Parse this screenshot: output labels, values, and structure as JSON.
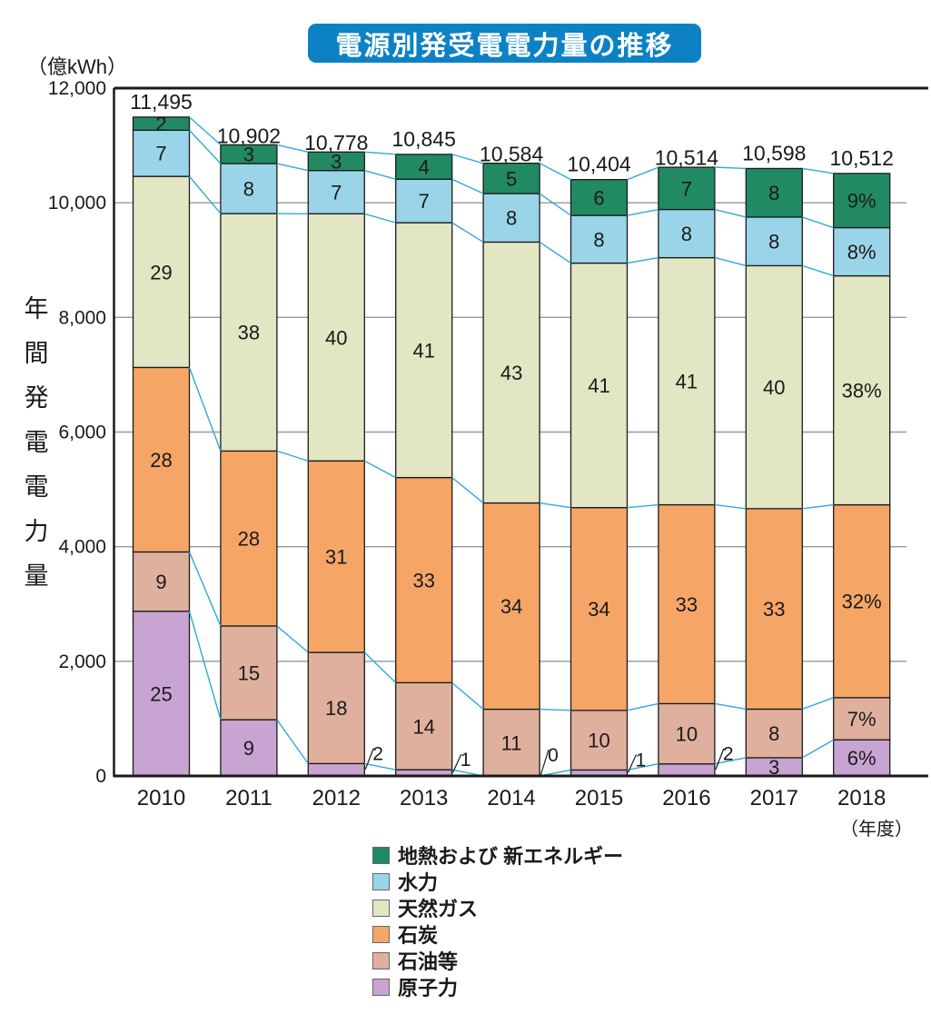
{
  "title": "電源別発受電電力量の推移",
  "unit_label": "（億kWh）",
  "y_axis_label": "年間発電電力量",
  "x_axis_unit": "（年度）",
  "colors": {
    "title_bg": "#0c82c5",
    "axis": "#1a1a1a",
    "grid": "#9a9a9a",
    "connector": "#2fa9dd",
    "text": "#1a1a1a"
  },
  "chart_data": {
    "type": "bar",
    "stacked": true,
    "title": "電源別発受電電力量の推移",
    "ylabel": "年間発電電力量",
    "y_unit": "（億kWh）",
    "x_unit": "（年度）",
    "ylim": [
      0,
      12000
    ],
    "grid": true,
    "legend_position": "bottom",
    "categories": [
      "2010",
      "2011",
      "2012",
      "2013",
      "2014",
      "2015",
      "2016",
      "2017",
      "2018"
    ],
    "totals": [
      11495,
      10902,
      10778,
      10845,
      10584,
      10404,
      10514,
      10598,
      10512
    ],
    "total_labels": [
      "11,495",
      "10,902",
      "10,778",
      "10,845",
      "10,584",
      "10,404",
      "10,514",
      "10,598",
      "10,512"
    ],
    "percent_suffix_category": "2018",
    "yticks": [
      {
        "value": 12000,
        "label": "12,000"
      },
      {
        "value": 10000,
        "label": "10,000"
      },
      {
        "value": 8000,
        "label": "8,000"
      },
      {
        "value": 6000,
        "label": "6,000"
      },
      {
        "value": 4000,
        "label": "4,000"
      },
      {
        "value": 2000,
        "label": "2,000"
      },
      {
        "value": 0,
        "label": "0"
      }
    ],
    "series": [
      {
        "name": "原子力",
        "color": "#c7a4d1",
        "values_pct": [
          25,
          9,
          2,
          1,
          0,
          1,
          2,
          3,
          6
        ]
      },
      {
        "name": "石油等",
        "color": "#e0b09e",
        "values_pct": [
          9,
          15,
          18,
          14,
          11,
          10,
          10,
          8,
          7
        ]
      },
      {
        "name": "石炭",
        "color": "#f5a667",
        "values_pct": [
          28,
          28,
          31,
          33,
          34,
          34,
          33,
          33,
          32
        ]
      },
      {
        "name": "天然ガス",
        "color": "#e3e6c3",
        "values_pct": [
          29,
          38,
          40,
          41,
          43,
          41,
          41,
          40,
          38
        ]
      },
      {
        "name": "水力",
        "color": "#9ad4e9",
        "values_pct": [
          7,
          8,
          7,
          7,
          8,
          8,
          8,
          8,
          8
        ]
      },
      {
        "name": "地熱および 新エネルギー",
        "color": "#228a63",
        "values_pct": [
          2,
          3,
          3,
          4,
          5,
          6,
          7,
          8,
          9
        ]
      }
    ]
  },
  "legend": {
    "items": [
      {
        "label": "地熱および 新エネルギー",
        "color": "#228a63"
      },
      {
        "label": "水力",
        "color": "#9ad4e9"
      },
      {
        "label": "天然ガス",
        "color": "#e3e6c3"
      },
      {
        "label": "石炭",
        "color": "#f5a667"
      },
      {
        "label": "石油等",
        "color": "#e0b09e"
      },
      {
        "label": "原子力",
        "color": "#c7a4d1"
      }
    ]
  }
}
